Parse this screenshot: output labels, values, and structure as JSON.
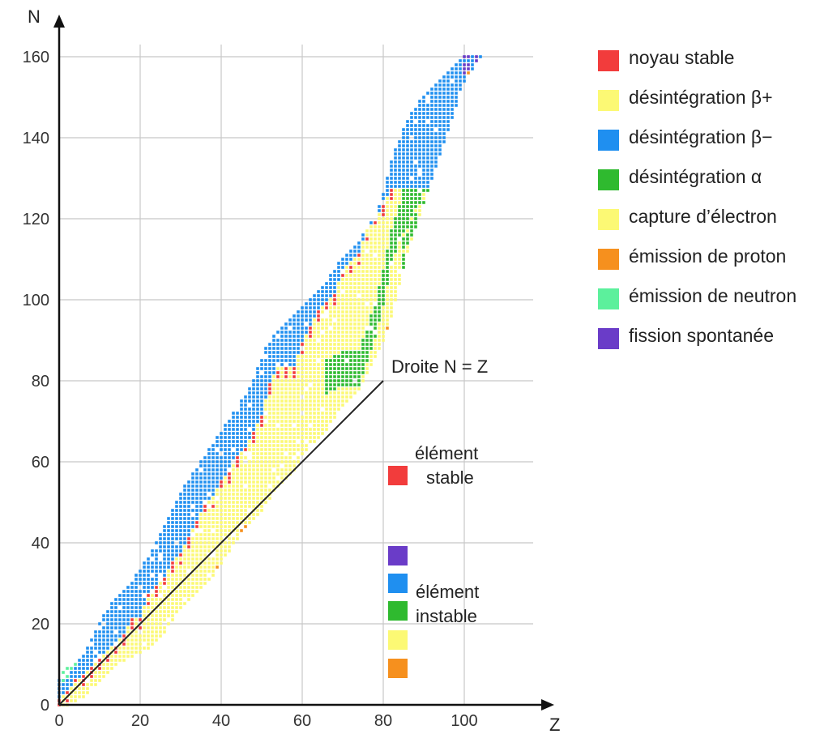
{
  "chart_data": {
    "type": "scatter",
    "xlabel": "Z",
    "ylabel": "N",
    "xlim": [
      0,
      117
    ],
    "ylim": [
      0,
      165
    ],
    "x_ticks": [
      "0",
      "20",
      "40",
      "60",
      "80",
      "100"
    ],
    "y_ticks": [
      "0",
      "20",
      "40",
      "60",
      "80",
      "100",
      "120",
      "140",
      "160"
    ],
    "grid": true,
    "legend_position": "right",
    "line": {
      "label": "Droite N = Z",
      "from": [
        0,
        0
      ],
      "to": [
        80,
        80
      ]
    },
    "categories": [
      {
        "name": "noyau stable",
        "color": "#f23c3c"
      },
      {
        "name": "désintégration β+",
        "color": "#fcf974"
      },
      {
        "name": "désintégration β−",
        "color": "#1f8ff0"
      },
      {
        "name": "désintégration α",
        "color": "#2fba2f"
      },
      {
        "name": "capture d’électron",
        "color": "#fcf974"
      },
      {
        "name": "émission de proton",
        "color": "#f6901e"
      },
      {
        "name": "émission de neutron",
        "color": "#5cf09c"
      },
      {
        "name": "fission spontanée",
        "color": "#6a3cc8"
      }
    ],
    "stable_line": [
      [
        0,
        0
      ],
      [
        2,
        2
      ],
      [
        4,
        5
      ],
      [
        6,
        6
      ],
      [
        8,
        8
      ],
      [
        10,
        10
      ],
      [
        12,
        12
      ],
      [
        14,
        14
      ],
      [
        16,
        16
      ],
      [
        18,
        20
      ],
      [
        20,
        20
      ],
      [
        22,
        26
      ],
      [
        24,
        28
      ],
      [
        26,
        30
      ],
      [
        28,
        34
      ],
      [
        30,
        36
      ],
      [
        32,
        40
      ],
      [
        34,
        44
      ],
      [
        36,
        48
      ],
      [
        38,
        50
      ],
      [
        40,
        54
      ],
      [
        42,
        56
      ],
      [
        44,
        60
      ],
      [
        46,
        62
      ],
      [
        48,
        66
      ],
      [
        50,
        70
      ],
      [
        52,
        78
      ],
      [
        54,
        82
      ],
      [
        56,
        82
      ],
      [
        58,
        82
      ],
      [
        60,
        88
      ],
      [
        62,
        92
      ],
      [
        64,
        96
      ],
      [
        66,
        98
      ],
      [
        68,
        100
      ],
      [
        70,
        106
      ],
      [
        72,
        108
      ],
      [
        74,
        110
      ],
      [
        76,
        116
      ],
      [
        78,
        118
      ],
      [
        80,
        122
      ],
      [
        82,
        126
      ]
    ],
    "beta_minus_top": [
      [
        2,
        6
      ],
      [
        6,
        12
      ],
      [
        10,
        20
      ],
      [
        14,
        26
      ],
      [
        18,
        30
      ],
      [
        22,
        36
      ],
      [
        26,
        44
      ],
      [
        30,
        52
      ],
      [
        34,
        58
      ],
      [
        38,
        64
      ],
      [
        42,
        70
      ],
      [
        46,
        76
      ],
      [
        48,
        80
      ],
      [
        50,
        86
      ],
      [
        54,
        92
      ],
      [
        58,
        96
      ],
      [
        62,
        100
      ],
      [
        66,
        104
      ],
      [
        70,
        110
      ],
      [
        74,
        114
      ],
      [
        78,
        120
      ],
      [
        80,
        126
      ],
      [
        82,
        134
      ],
      [
        86,
        144
      ],
      [
        90,
        150
      ],
      [
        96,
        156
      ],
      [
        100,
        160
      ]
    ],
    "proton_drip": [
      [
        2,
        0
      ],
      [
        6,
        2
      ],
      [
        10,
        6
      ],
      [
        14,
        10
      ],
      [
        18,
        12
      ],
      [
        22,
        14
      ],
      [
        26,
        18
      ],
      [
        30,
        24
      ],
      [
        34,
        28
      ],
      [
        38,
        32
      ],
      [
        42,
        38
      ],
      [
        46,
        44
      ],
      [
        50,
        48
      ],
      [
        54,
        54
      ],
      [
        58,
        58
      ],
      [
        62,
        64
      ],
      [
        66,
        68
      ],
      [
        70,
        74
      ],
      [
        74,
        78
      ],
      [
        78,
        86
      ],
      [
        80,
        90
      ],
      [
        82,
        96
      ],
      [
        84,
        104
      ],
      [
        86,
        112
      ],
      [
        88,
        118
      ],
      [
        90,
        124
      ],
      [
        92,
        130
      ],
      [
        94,
        136
      ],
      [
        96,
        142
      ],
      [
        98,
        148
      ],
      [
        100,
        154
      ],
      [
        104,
        160
      ],
      [
        108,
        162
      ],
      [
        112,
        162
      ]
    ],
    "alpha_left": [
      [
        66,
        82
      ],
      [
        70,
        84
      ],
      [
        74,
        84
      ],
      [
        78,
        96
      ],
      [
        80,
        104
      ],
      [
        82,
        114
      ],
      [
        84,
        120
      ],
      [
        86,
        124
      ],
      [
        88,
        130
      ],
      [
        92,
        136
      ],
      [
        96,
        140
      ],
      [
        100,
        146
      ],
      [
        104,
        152
      ]
    ],
    "fission_band": [
      [
        100,
        160
      ],
      [
        102,
        160
      ],
      [
        104,
        158
      ],
      [
        106,
        160
      ],
      [
        108,
        160
      ],
      [
        110,
        162
      ]
    ],
    "annotations": {
      "stable_box_label_1": "élément",
      "stable_box_label_2": "stable",
      "unstable_box_label_1": "élément",
      "unstable_box_label_2": "instable"
    }
  }
}
